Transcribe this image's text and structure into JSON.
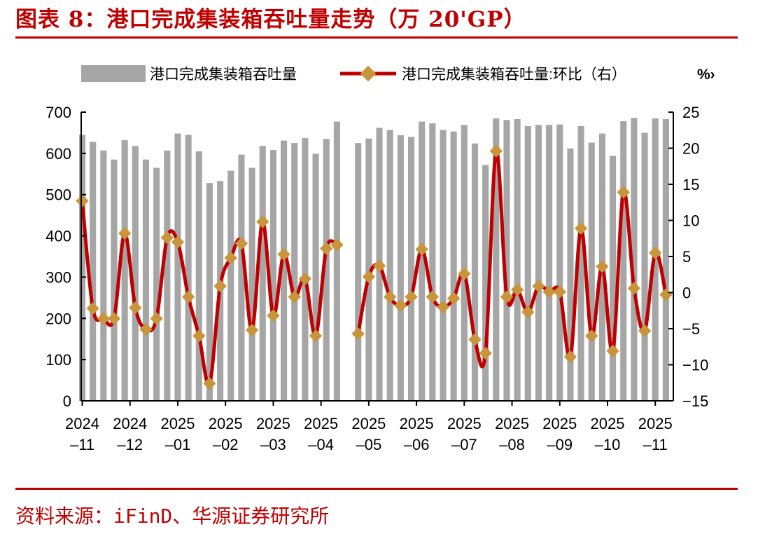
{
  "title": "图表 8：港口完成集装箱吞吐量走势（万 20'GP）",
  "source": "资料来源：iFinD、华源证券研究所",
  "chart_data": {
    "type": "bar+line",
    "y_left": {
      "lim": [
        0,
        700
      ],
      "ticks": [
        0,
        100,
        200,
        300,
        400,
        500,
        600,
        700
      ]
    },
    "y_right": {
      "lim": [
        -15,
        25
      ],
      "ticks": [
        -15,
        -10,
        -5,
        0,
        5,
        10,
        15,
        20,
        25
      ],
      "unit": "%"
    },
    "x_labels": [
      {
        "year": "2024",
        "period": "–11"
      },
      {
        "year": "2024",
        "period": "–12"
      },
      {
        "year": "2025",
        "period": "–01"
      },
      {
        "year": "2025",
        "period": "–02"
      },
      {
        "year": "2025",
        "period": "–03"
      },
      {
        "year": "2025",
        "period": "–04"
      },
      {
        "year": "2025",
        "period": "–05"
      },
      {
        "year": "2025",
        "period": "–06"
      },
      {
        "year": "2025",
        "period": "–07"
      },
      {
        "year": "2025",
        "period": "–08"
      },
      {
        "year": "2025",
        "period": "–09"
      },
      {
        "year": "2025",
        "period": "–10"
      },
      {
        "year": "2025",
        "period": "–11"
      }
    ],
    "colors": {
      "bar": "#a6a6a6",
      "line": "#c00000",
      "marker": "#c8943c"
    },
    "series": [
      {
        "name": "港口完成集装箱吞吐量",
        "type": "bar",
        "axis": "left",
        "values": [
          645,
          628,
          607,
          585,
          632,
          618,
          585,
          565,
          607,
          648,
          645,
          605,
          528,
          533,
          558,
          597,
          565,
          618,
          608,
          631,
          625,
          637,
          599,
          635,
          677,
          null,
          625,
          636,
          662,
          657,
          644,
          640,
          677,
          673,
          657,
          653,
          669,
          624,
          572,
          685,
          681,
          683,
          666,
          669,
          669,
          670,
          612,
          666,
          626,
          648,
          594,
          678,
          686,
          650,
          685,
          683
        ]
      },
      {
        "name": "港口完成集装箱吞吐量:环比（右）",
        "type": "line",
        "axis": "right",
        "values": [
          12.7,
          -2.2,
          -3.6,
          -3.6,
          8.2,
          -2.1,
          -5.1,
          -3.6,
          7.6,
          7.0,
          -0.6,
          -6.0,
          -12.6,
          0.9,
          4.8,
          6.8,
          -5.2,
          9.8,
          -3.2,
          5.3,
          -0.6,
          1.9,
          -6.0,
          6.1,
          6.6,
          null,
          -5.7,
          2.2,
          3.7,
          -0.6,
          -1.8,
          -0.6,
          6.0,
          -0.6,
          -2.0,
          -0.8,
          2.6,
          -6.5,
          -8.4,
          19.6,
          -0.6,
          0.4,
          -2.7,
          0.9,
          0.1,
          0.1,
          -8.9,
          8.9,
          -6.0,
          3.6,
          -8.1,
          13.9,
          0.6,
          -5.3,
          5.5,
          -0.3
        ]
      }
    ],
    "legend": {
      "position": "top",
      "items": [
        "港口完成集装箱吞吐量",
        "港口完成集装箱吞吐量:环比（右）"
      ],
      "trailing": "%›"
    },
    "grid": false
  }
}
